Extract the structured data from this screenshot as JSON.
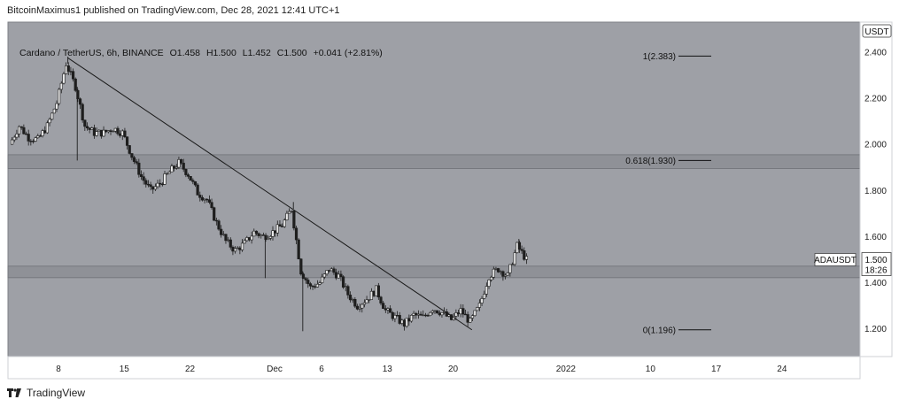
{
  "header": {
    "published_line": "BitcoinMaximus1 published on TradingView.com, Dec 28, 2021 12:41 UTC+1"
  },
  "symbol_bar": {
    "title": "Cardano / TetherUS, 6h, BINANCE",
    "o_label": "O",
    "o_value": "1.458",
    "h_label": "H",
    "h_value": "1.500",
    "l_label": "L",
    "l_value": "1.452",
    "c_label": "C",
    "c_value": "1.500",
    "change": "+0.041 (+2.81%)"
  },
  "currency_label": "USDT",
  "footer": {
    "brand": "TradingView"
  },
  "colors": {
    "plot_bg": "#9ea0a6",
    "band": "#8f9197",
    "candle": "#1e1e1e",
    "trendline": "#1a1a1a",
    "axis_bg": "#ffffff"
  },
  "chart_data": {
    "type": "candlestick",
    "y_axis": {
      "min": 1.08,
      "max": 2.53,
      "ticks": [
        "2.400",
        "2.200",
        "2.000",
        "1.800",
        "1.600",
        "1.400",
        "1.200"
      ],
      "tick_values": [
        2.4,
        2.2,
        2.0,
        1.8,
        1.6,
        1.4,
        1.2
      ],
      "side": "right"
    },
    "x_axis": {
      "tick_labels": [
        "8",
        "15",
        "22",
        "Dec",
        "6",
        "13",
        "20",
        "2022",
        "10",
        "17",
        "24"
      ]
    },
    "last_price": {
      "symbol": "ADAUSDT",
      "price": "1.500",
      "countdown": "18:26",
      "value": 1.5
    },
    "fib_levels": [
      {
        "label": "1(2.383)",
        "value": 2.383
      },
      {
        "label": "0.618(1.930)",
        "value": 1.93
      },
      {
        "label": "0(1.196)",
        "value": 1.196
      }
    ],
    "zones": [
      {
        "from": 1.895,
        "to": 1.955
      },
      {
        "from": 1.422,
        "to": 1.472
      }
    ],
    "trendline": {
      "from": {
        "date": "2021-11-09",
        "price": 2.375
      },
      "to": {
        "date": "2021-12-22",
        "price": 1.196
      }
    },
    "price_path": [
      [
        "2021-11-03",
        2.0
      ],
      [
        "2021-11-04",
        2.08
      ],
      [
        "2021-11-05",
        2.03
      ],
      [
        "2021-11-06",
        2.02
      ],
      [
        "2021-11-07",
        2.08
      ],
      [
        "2021-11-08",
        2.18
      ],
      [
        "2021-11-09",
        2.35
      ],
      [
        "2021-11-10",
        2.25
      ],
      [
        "2021-11-11",
        2.08
      ],
      [
        "2021-11-12",
        2.05
      ],
      [
        "2021-11-13",
        2.05
      ],
      [
        "2021-11-14",
        2.07
      ],
      [
        "2021-11-15",
        2.05
      ],
      [
        "2021-11-16",
        1.95
      ],
      [
        "2021-11-17",
        1.86
      ],
      [
        "2021-11-18",
        1.8
      ],
      [
        "2021-11-19",
        1.83
      ],
      [
        "2021-11-20",
        1.88
      ],
      [
        "2021-11-21",
        1.92
      ],
      [
        "2021-11-22",
        1.87
      ],
      [
        "2021-11-23",
        1.79
      ],
      [
        "2021-11-24",
        1.76
      ],
      [
        "2021-11-25",
        1.66
      ],
      [
        "2021-11-26",
        1.58
      ],
      [
        "2021-11-27",
        1.54
      ],
      [
        "2021-11-28",
        1.57
      ],
      [
        "2021-11-29",
        1.62
      ],
      [
        "2021-11-30",
        1.6
      ],
      [
        "2021-12-01",
        1.62
      ],
      [
        "2021-12-02",
        1.65
      ],
      [
        "2021-12-03",
        1.72
      ],
      [
        "2021-12-04",
        1.45
      ],
      [
        "2021-12-05",
        1.38
      ],
      [
        "2021-12-06",
        1.4
      ],
      [
        "2021-12-07",
        1.46
      ],
      [
        "2021-12-08",
        1.43
      ],
      [
        "2021-12-09",
        1.35
      ],
      [
        "2021-12-10",
        1.3
      ],
      [
        "2021-12-11",
        1.33
      ],
      [
        "2021-12-12",
        1.37
      ],
      [
        "2021-12-13",
        1.28
      ],
      [
        "2021-12-14",
        1.25
      ],
      [
        "2021-12-15",
        1.22
      ],
      [
        "2021-12-16",
        1.26
      ],
      [
        "2021-12-17",
        1.25
      ],
      [
        "2021-12-18",
        1.29
      ],
      [
        "2021-12-19",
        1.27
      ],
      [
        "2021-12-20",
        1.24
      ],
      [
        "2021-12-21",
        1.28
      ],
      [
        "2021-12-22",
        1.23
      ],
      [
        "2021-12-23",
        1.3
      ],
      [
        "2021-12-24",
        1.43
      ],
      [
        "2021-12-25",
        1.46
      ],
      [
        "2021-12-26",
        1.43
      ],
      [
        "2021-12-27",
        1.56
      ],
      [
        "2021-12-28",
        1.5
      ]
    ],
    "extremes": [
      {
        "date": "2021-11-09",
        "high": 2.38
      },
      {
        "date": "2021-11-10",
        "low": 1.93
      },
      {
        "date": "2021-11-30",
        "low": 1.42
      },
      {
        "date": "2021-12-03",
        "high": 1.75
      },
      {
        "date": "2021-12-04",
        "low": 1.19
      },
      {
        "date": "2021-12-27",
        "high": 1.59
      }
    ]
  }
}
